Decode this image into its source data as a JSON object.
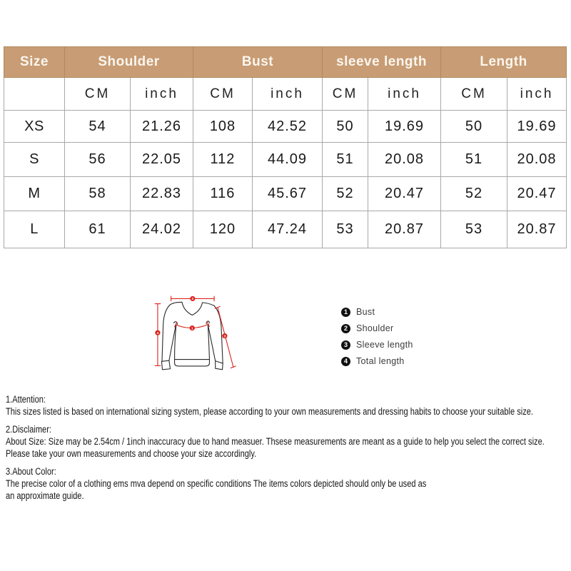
{
  "colors": {
    "header_bg": "#c89c74",
    "header_text": "#faf6ef",
    "table_border": "#a9a9a9",
    "measure_red": "#d9251f",
    "outline_black": "#2a2a2a",
    "legend_dot": "#111111"
  },
  "table": {
    "groups": [
      {
        "label": "Size",
        "span": 1
      },
      {
        "label": "Shoulder",
        "span": 2
      },
      {
        "label": "Bust",
        "span": 2
      },
      {
        "label": "sleeve length",
        "span": 2
      },
      {
        "label": "Length",
        "span": 2
      }
    ],
    "subheader": [
      "",
      "CM",
      "inch",
      "CM",
      "inch",
      "CM",
      "inch",
      "CM",
      "inch"
    ],
    "rows": [
      {
        "size": "XS",
        "values": [
          "54",
          "21.26",
          "108",
          "42.52",
          "50",
          "19.69",
          "50",
          "19.69"
        ]
      },
      {
        "size": "S",
        "values": [
          "56",
          "22.05",
          "112",
          "44.09",
          "51",
          "20.08",
          "51",
          "20.08"
        ]
      },
      {
        "size": "M",
        "values": [
          "58",
          "22.83",
          "116",
          "45.67",
          "52",
          "20.47",
          "52",
          "20.47"
        ]
      },
      {
        "size": "L",
        "values": [
          "61",
          "24.02",
          "120",
          "47.24",
          "53",
          "20.87",
          "53",
          "20.87"
        ]
      }
    ]
  },
  "diagram": {
    "markers": {
      "bust": "1",
      "shoulder": "2",
      "sleeve": "3",
      "length": "4"
    }
  },
  "legend": {
    "items": [
      {
        "num": "1",
        "label": "Bust"
      },
      {
        "num": "2",
        "label": "Shoulder"
      },
      {
        "num": "3",
        "label": "Sleeve length"
      },
      {
        "num": "4",
        "label": "Total length"
      }
    ]
  },
  "notes": {
    "s1_title": "1.Attention:",
    "s1_line1": "This sizes listed is based on international sizing system, please according to your own measurements and dressing habits to choose your suitable size.",
    "s2_title": "2.Disclaimer:",
    "s2_line1": "About Size: Size may be 2.54cm / 1inch inaccuracy due to hand measuer. Thsese measurements are meant as a guide to help you select the correct size.",
    "s2_line2": "Please take your own measurements and choose your size accordingly.",
    "s3_title": "3.About Color:",
    "s3_line1": "The precise color of a clothing ems mva depend on specific conditions The items colors depicted should only be used as",
    "s3_line2": "an approximate guide."
  }
}
